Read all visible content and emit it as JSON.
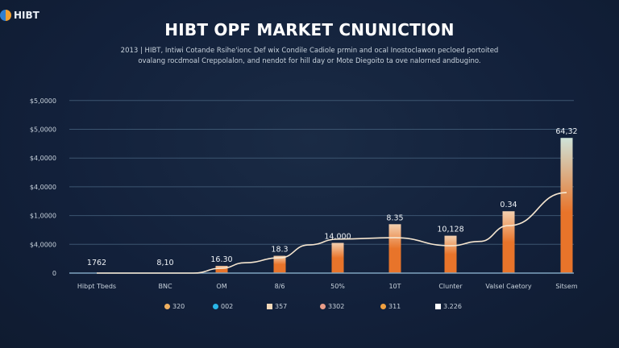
{
  "logo": {
    "text": "HIBT"
  },
  "chart_data": {
    "type": "bar",
    "title": "HIBT OPF MARKET CNUNICTION",
    "subtitle": [
      "2013 | HIBT, Intiwi Cotande Rsihe'ionc Def wix Condile Cadiole prmin and ocal Inostoclawon pecloed portoited",
      "ovalang rocdmoal Creppolalon, and nendot for hill day or Mote Diegoito ta ove nalorned andbugino."
    ],
    "xlabel": "",
    "ylabel": "",
    "y_tick_labels": [
      "0",
      "$4,0000",
      "$1,0000",
      "$4,0000",
      "$4,0000",
      "$5,0000",
      "$5,0000"
    ],
    "ylim": [
      0,
      6
    ],
    "grid": true,
    "categories": [
      "Hibpt Tbeds",
      "BNC",
      "OM",
      "8/6",
      "50%",
      "10T",
      "Clunter",
      "Valsel Caetory",
      "Sitsem"
    ],
    "values": [
      0,
      0,
      0.25,
      0.6,
      1.05,
      1.7,
      1.3,
      2.15,
      4.7
    ],
    "data_labels": [
      "1762",
      "8,10",
      "16.30",
      "18.3",
      "14.000",
      "8.35",
      "10,128",
      "0.34",
      "64,32"
    ],
    "line": {
      "x": [
        0,
        1,
        1.5,
        2,
        2.4,
        3,
        3.5,
        4,
        5,
        6,
        6.5,
        7,
        8
      ],
      "y": [
        0,
        0,
        0,
        0.17,
        0.36,
        0.53,
        0.98,
        1.18,
        1.23,
        0.95,
        1.1,
        1.65,
        2.8
      ]
    },
    "colors": {
      "bar_bottom": "#e8742a",
      "bar_top": "#f3d0b0",
      "tall_bar_top": "#cfe3d8",
      "line": "#f6e6d0",
      "grid": "#3c5570",
      "axis": "#7fa3bf"
    },
    "legend": [
      {
        "label": "320",
        "color": "#f0b060",
        "shape": "dot"
      },
      {
        "label": "002",
        "color": "#29b6e8",
        "shape": "dot"
      },
      {
        "label": "357",
        "color": "#f3d8b8",
        "shape": "square"
      },
      {
        "label": "3302",
        "color": "#e89c88",
        "shape": "dot"
      },
      {
        "label": "311",
        "color": "#f0a040",
        "shape": "dot"
      },
      {
        "label": "3.226",
        "color": "#ffffff",
        "shape": "square"
      }
    ],
    "legend_position": "bottom"
  }
}
